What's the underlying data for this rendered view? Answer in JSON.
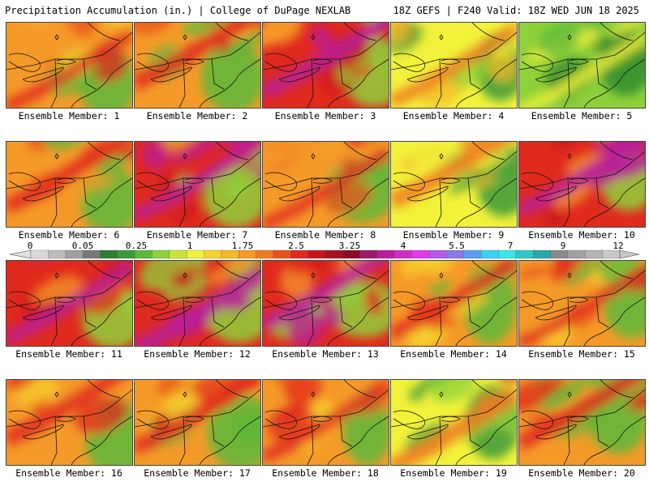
{
  "header": {
    "title": "Precipitation Accumulation (in.) | College of DuPage NEXLAB",
    "run_info": "18Z GEFS | F240 Valid: 18Z WED JUN 18 2025"
  },
  "colorbar": {
    "tick_labels": [
      "0",
      "0.05",
      "0.25",
      "1",
      "1.75",
      "2.5",
      "3.25",
      "4",
      "5.5",
      "7",
      "9",
      "12"
    ],
    "colors": [
      "#d9d9d9",
      "#bdbdbd",
      "#9e9e9e",
      "#7a7a7a",
      "#2e7d32",
      "#3a9a3a",
      "#5cb83a",
      "#8fd13a",
      "#c8e43a",
      "#f2f23a",
      "#f5d22e",
      "#f5b82a",
      "#f59a28",
      "#f07a22",
      "#e8521e",
      "#e02a1e",
      "#c8141e",
      "#a8101e",
      "#8c0c28",
      "#9c1a6a",
      "#b81e9a",
      "#d22cc8",
      "#e23ae6",
      "#b45ae6",
      "#8a7ae6",
      "#5aa0f0",
      "#3ad2f0",
      "#3ae6e6",
      "#2ec8c8",
      "#28a8a8",
      "#8a8a8a",
      "#a0a0a0",
      "#b4b4b4",
      "#c8c8c8"
    ]
  },
  "members": [
    {
      "label": "Ensemble Member: 1",
      "intensity": 2
    },
    {
      "label": "Ensemble Member: 2",
      "intensity": 2
    },
    {
      "label": "Ensemble Member: 3",
      "intensity": 3
    },
    {
      "label": "Ensemble Member: 4",
      "intensity": 1
    },
    {
      "label": "Ensemble Member: 5",
      "intensity": 0
    },
    {
      "label": "Ensemble Member: 6",
      "intensity": 2
    },
    {
      "label": "Ensemble Member: 7",
      "intensity": 3
    },
    {
      "label": "Ensemble Member: 8",
      "intensity": 2
    },
    {
      "label": "Ensemble Member: 9",
      "intensity": 1
    },
    {
      "label": "Ensemble Member: 10",
      "intensity": 3
    },
    {
      "label": "Ensemble Member: 11",
      "intensity": 3
    },
    {
      "label": "Ensemble Member: 12",
      "intensity": 3
    },
    {
      "label": "Ensemble Member: 13",
      "intensity": 3
    },
    {
      "label": "Ensemble Member: 14",
      "intensity": 2
    },
    {
      "label": "Ensemble Member: 15",
      "intensity": 2
    },
    {
      "label": "Ensemble Member: 16",
      "intensity": 2
    },
    {
      "label": "Ensemble Member: 17",
      "intensity": 2
    },
    {
      "label": "Ensemble Member: 18",
      "intensity": 2
    },
    {
      "label": "Ensemble Member: 19",
      "intensity": 1
    },
    {
      "label": "Ensemble Member: 20",
      "intensity": 2
    }
  ]
}
